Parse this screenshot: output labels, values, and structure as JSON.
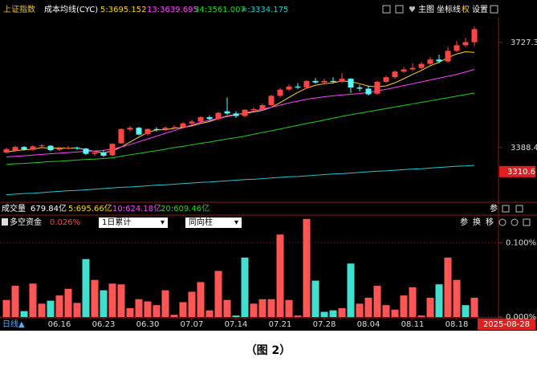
{
  "header": {
    "index_name": "上证指数",
    "indicator": "成本均线(CYC)",
    "buttons": [
      "主图",
      "坐标线",
      "权",
      "设置"
    ]
  },
  "volume_row": {
    "title": "成交量",
    "items": [
      {
        "text": "679.84亿",
        "color": "#ffffff"
      },
      {
        "text": "5:695.66亿",
        "color": "#ffd21e"
      },
      {
        "text": "10:624.18亿",
        "color": "#ff40ff"
      },
      {
        "text": "20:609.46亿",
        "color": "#20d020"
      }
    ]
  },
  "panel_buttons": [
    "参",
    "换",
    "移"
  ],
  "caption": "（图 2）",
  "chart_data": [
    {
      "type": "candlestick",
      "up_color": "#ff4444",
      "down_color": "#54fcfc",
      "open": [
        3372,
        3378,
        3390,
        3381,
        3393,
        3394,
        3381,
        3386,
        3388,
        3385,
        3368,
        3372,
        3363,
        3402,
        3446,
        3452,
        3432,
        3448,
        3447,
        3452,
        3454,
        3466,
        3472,
        3486,
        3480,
        3505,
        3498,
        3490,
        3510,
        3512,
        3525,
        3555,
        3575,
        3585,
        3582,
        3603,
        3598,
        3603,
        3600,
        3610,
        3582,
        3578,
        3562,
        3600,
        3615,
        3633,
        3640,
        3645,
        3658,
        3672,
        3666,
        3700,
        3718,
        3728
      ],
      "high": [
        3388,
        3394,
        3393,
        3396,
        3399,
        3396,
        3390,
        3393,
        3391,
        3387,
        3376,
        3380,
        3402,
        3450,
        3458,
        3455,
        3450,
        3454,
        3456,
        3460,
        3470,
        3478,
        3490,
        3492,
        3503,
        3550,
        3505,
        3512,
        3518,
        3530,
        3558,
        3580,
        3592,
        3596,
        3606,
        3612,
        3610,
        3615,
        3628,
        3612,
        3590,
        3588,
        3604,
        3620,
        3638,
        3648,
        3660,
        3664,
        3680,
        3688,
        3712,
        3732,
        3742,
        3778
      ],
      "low": [
        3368,
        3374,
        3378,
        3378,
        3388,
        3376,
        3377,
        3382,
        3380,
        3364,
        3362,
        3358,
        3360,
        3400,
        3440,
        3428,
        3428,
        3440,
        3442,
        3448,
        3450,
        3460,
        3468,
        3474,
        3476,
        3494,
        3484,
        3486,
        3505,
        3508,
        3522,
        3550,
        3570,
        3576,
        3578,
        3594,
        3592,
        3594,
        3596,
        3564,
        3570,
        3556,
        3558,
        3596,
        3610,
        3628,
        3636,
        3640,
        3652,
        3660,
        3662,
        3696,
        3712,
        3715
      ],
      "close": [
        3383,
        3390,
        3382,
        3392,
        3395,
        3380,
        3386,
        3388,
        3385,
        3368,
        3372,
        3362,
        3400,
        3448,
        3452,
        3430,
        3448,
        3446,
        3452,
        3454,
        3466,
        3472,
        3486,
        3480,
        3500,
        3498,
        3490,
        3510,
        3512,
        3525,
        3555,
        3575,
        3585,
        3582,
        3603,
        3598,
        3603,
        3600,
        3610,
        3582,
        3578,
        3560,
        3600,
        3615,
        3633,
        3640,
        3645,
        3658,
        3672,
        3666,
        3700,
        3718,
        3728,
        3770
      ],
      "series": [
        {
          "name": "5:3695.152",
          "color": "#ffd21e",
          "values": [
            3374,
            3378,
            3381,
            3383,
            3388,
            3386,
            3387,
            3386,
            3387,
            3381,
            3376,
            3371,
            3377,
            3390,
            3406,
            3422,
            3437,
            3445,
            3446,
            3450,
            3453,
            3458,
            3466,
            3472,
            3482,
            3490,
            3495,
            3498,
            3503,
            3508,
            3518,
            3533,
            3550,
            3566,
            3580,
            3589,
            3594,
            3597,
            3603,
            3601,
            3594,
            3586,
            3584,
            3587,
            3597,
            3610,
            3624,
            3637,
            3652,
            3663,
            3678,
            3690,
            3697,
            3695
          ]
        },
        {
          "name": "13:3639.695",
          "color": "#ff40ff",
          "values": [
            3358,
            3360,
            3362,
            3364,
            3366,
            3368,
            3370,
            3372,
            3374,
            3376,
            3377,
            3379,
            3383,
            3390,
            3398,
            3407,
            3416,
            3425,
            3434,
            3443,
            3452,
            3461,
            3470,
            3476,
            3482,
            3488,
            3494,
            3500,
            3506,
            3512,
            3518,
            3525,
            3532,
            3538,
            3544,
            3548,
            3552,
            3555,
            3558,
            3560,
            3562,
            3566,
            3571,
            3576,
            3582,
            3588,
            3594,
            3600,
            3606,
            3612,
            3618,
            3624,
            3632,
            3640
          ]
        },
        {
          "name": "34:3561.007",
          "color": "#20d020",
          "values": [
            3334,
            3336,
            3337,
            3339,
            3341,
            3343,
            3344,
            3346,
            3348,
            3350,
            3351,
            3353,
            3355,
            3360,
            3365,
            3369,
            3374,
            3378,
            3383,
            3388,
            3392,
            3397,
            3402,
            3406,
            3411,
            3416,
            3420,
            3425,
            3431,
            3437,
            3442,
            3448,
            3454,
            3460,
            3466,
            3471,
            3477,
            3483,
            3489,
            3494,
            3499,
            3504,
            3509,
            3514,
            3519,
            3524,
            3529,
            3534,
            3539,
            3544,
            3549,
            3554,
            3559,
            3564
          ]
        },
        {
          "name": "∞:3334.175",
          "color": "#20c8d0",
          "values": [
            3236,
            3238,
            3240,
            3241,
            3243,
            3245,
            3247,
            3249,
            3250,
            3252,
            3254,
            3256,
            3258,
            3260,
            3261,
            3263,
            3265,
            3267,
            3268,
            3270,
            3272,
            3274,
            3276,
            3277,
            3279,
            3281,
            3283,
            3285,
            3286,
            3288,
            3290,
            3292,
            3294,
            3295,
            3297,
            3299,
            3301,
            3303,
            3304,
            3306,
            3308,
            3310,
            3312,
            3313,
            3315,
            3317,
            3319,
            3320,
            3322,
            3324,
            3326,
            3328,
            3329,
            3331
          ]
        }
      ],
      "ylim": [
        3217,
        3807
      ],
      "yticks": [
        3388.4,
        3727.3
      ],
      "marker": 3310.6,
      "grid": false
    },
    {
      "type": "bar",
      "title": "多空资金",
      "value_label": "0.026%",
      "controls": [
        "1日累计",
        "同向柱"
      ],
      "values": [
        0.023,
        0.042,
        0.008,
        0.045,
        0.018,
        0.022,
        0.029,
        0.038,
        0.019,
        0.078,
        0.05,
        0.036,
        0.045,
        0.044,
        0.012,
        0.024,
        0.021,
        0.016,
        0.036,
        0.003,
        0.02,
        0.034,
        0.047,
        0.009,
        0.062,
        0.023,
        0.002,
        0.08,
        0.018,
        0.024,
        0.024,
        0.111,
        0.023,
        0.002,
        0.132,
        0.049,
        0.007,
        0.009,
        0.012,
        0.072,
        0.018,
        0.026,
        0.042,
        0.016,
        0.01,
        0.029,
        0.04,
        0.002,
        0.026,
        0.044,
        0.08,
        0.05,
        0.016,
        0.026
      ],
      "colors": [
        "#ff5555",
        "#ff5555",
        "#40e0d0",
        "#ff5555",
        "#ff5555",
        "#40e0d0",
        "#ff5555",
        "#ff5555",
        "#ff5555",
        "#40e0d0",
        "#ff5555",
        "#40e0d0",
        "#ff5555",
        "#ff5555",
        "#ff5555",
        "#ff5555",
        "#ff5555",
        "#ff5555",
        "#ff5555",
        "#ff5555",
        "#ff5555",
        "#ff5555",
        "#ff5555",
        "#ff5555",
        "#ff5555",
        "#ff5555",
        "#40e0d0",
        "#40e0d0",
        "#ff5555",
        "#ff5555",
        "#ff5555",
        "#ff5555",
        "#ff5555",
        "#ff5555",
        "#ff5555",
        "#40e0d0",
        "#40e0d0",
        "#40e0d0",
        "#ff5555",
        "#40e0d0",
        "#ff5555",
        "#ff5555",
        "#ff5555",
        "#ff5555",
        "#ff5555",
        "#ff5555",
        "#ff5555",
        "#ff5555",
        "#ff5555",
        "#40e0d0",
        "#ff5555",
        "#ff5555",
        "#40e0d0",
        "#ff5555"
      ],
      "ylim": [
        0,
        0.135
      ],
      "yticks": [
        {
          "value": 0.1,
          "label": "0.100%"
        },
        {
          "value": 0,
          "label": "0.000%"
        }
      ],
      "grid": true,
      "xticks": [
        {
          "value": 6,
          "label": "06.16"
        },
        {
          "value": 11,
          "label": "06.23"
        },
        {
          "value": 16,
          "label": "06.30"
        },
        {
          "value": 21,
          "label": "07.07"
        },
        {
          "value": 26,
          "label": "07.14"
        },
        {
          "value": 31,
          "label": "07.21"
        },
        {
          "value": 36,
          "label": "07.28"
        },
        {
          "value": 41,
          "label": "08.04"
        },
        {
          "value": 46,
          "label": "08.11"
        },
        {
          "value": 51,
          "label": "08.18"
        }
      ],
      "period_label": "日线▲",
      "date_label": "2025-08-28"
    }
  ]
}
